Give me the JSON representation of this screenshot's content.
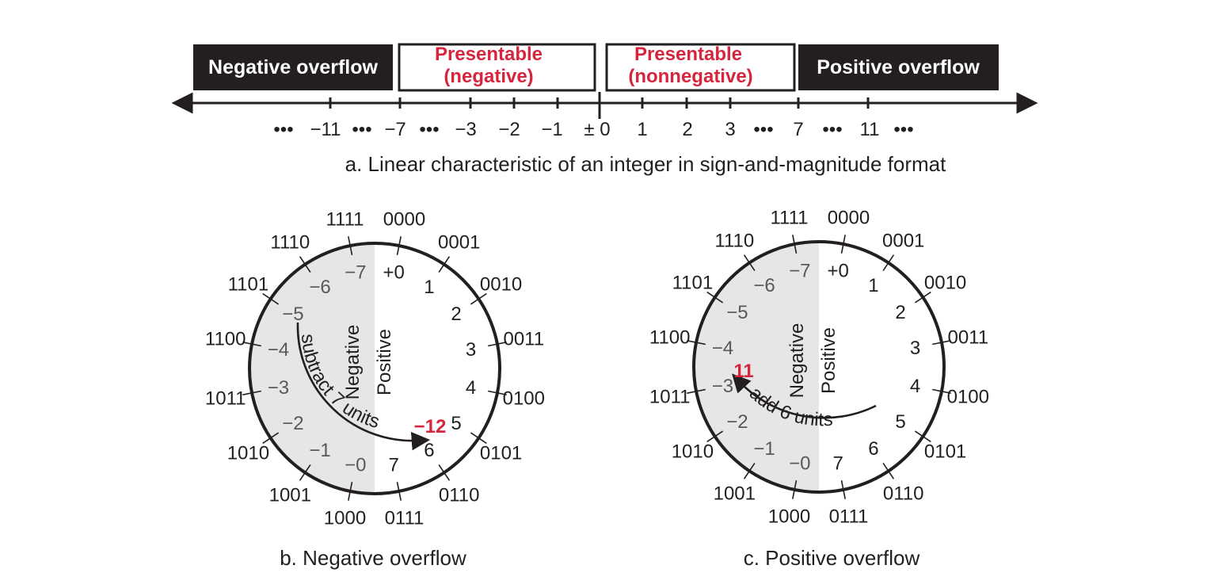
{
  "colors": {
    "ink": "#231f20",
    "accent_red": "#d6263d",
    "negative_shade": "#e6e6e7",
    "gray_text": "#58595b",
    "white": "#ffffff"
  },
  "linear": {
    "boxes": [
      {
        "key": "neg_overflow",
        "lines": [
          "Negative overflow"
        ],
        "style": "dark"
      },
      {
        "key": "pres_neg",
        "lines": [
          "Presentable",
          "(negative)"
        ],
        "style": "outlined"
      },
      {
        "key": "pres_nonneg",
        "lines": [
          "Presentable",
          "(nonnegative)"
        ],
        "style": "outlined"
      },
      {
        "key": "pos_overflow",
        "lines": [
          "Positive overflow"
        ],
        "style": "dark"
      }
    ],
    "tick_labels": [
      "•••",
      "−11",
      "•••",
      "−7",
      "•••",
      "−3",
      "−2",
      "−1",
      "± 0",
      "1",
      "2",
      "3",
      "•••",
      "7",
      "•••",
      "11",
      "•••"
    ],
    "caption": "a. Linear characteristic of an integer in sign-and-magnitude format"
  },
  "wheel_codes": [
    "0000",
    "0001",
    "0010",
    "0011",
    "0100",
    "0101",
    "0110",
    "0111",
    "1000",
    "1001",
    "1010",
    "1011",
    "1100",
    "1101",
    "1110",
    "1111"
  ],
  "wheel_values": [
    "+0",
    "1",
    "2",
    "3",
    "4",
    "5",
    "6",
    "7",
    "−0",
    "−1",
    "−2",
    "−3",
    "−4",
    "−5",
    "−6",
    "−7"
  ],
  "wheel_sides": {
    "negative": "Negative",
    "positive": "Positive"
  },
  "wheels": [
    {
      "key": "b",
      "caption": "b. Negative overflow",
      "arc_text": "subtract 7 units",
      "result": "−12"
    },
    {
      "key": "c",
      "caption": "c.  Positive overflow",
      "arc_text": "add 6 units",
      "result": "11"
    }
  ]
}
